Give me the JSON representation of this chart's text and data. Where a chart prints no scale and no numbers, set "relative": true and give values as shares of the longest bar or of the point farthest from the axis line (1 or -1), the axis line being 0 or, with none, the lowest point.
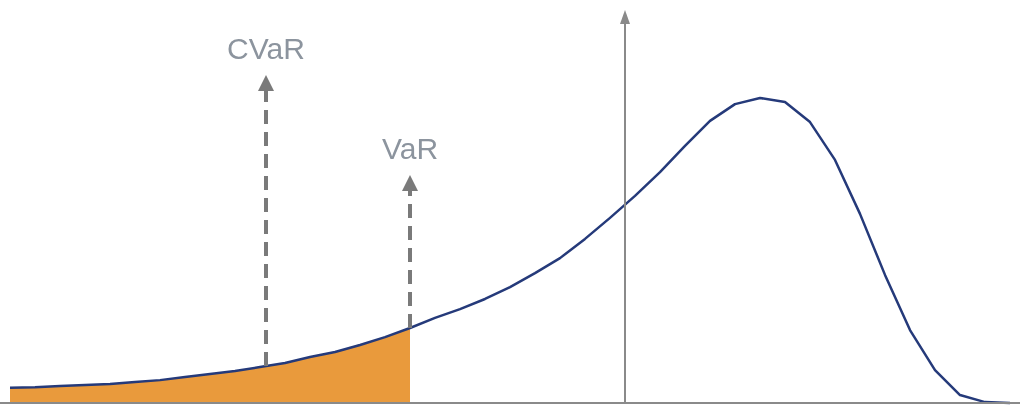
{
  "chart_data": {
    "type": "line",
    "relative": true,
    "categories": [
      null,
      null,
      null,
      null,
      null,
      null,
      null,
      null,
      null,
      null,
      null,
      null,
      null,
      null,
      null,
      null,
      null,
      null,
      null,
      null,
      null,
      null,
      null,
      null,
      null,
      null,
      null,
      null,
      null,
      null,
      null,
      null,
      null,
      null,
      null,
      null,
      null,
      null,
      null,
      null,
      null
    ],
    "series": [
      {
        "type": "area",
        "color": "#e99a3c",
        "values": [
          0.05,
          0.052,
          0.056,
          0.059,
          0.062,
          0.069,
          0.075,
          0.085,
          0.095,
          0.105,
          0.118,
          0.131,
          0.151,
          0.167,
          0.19,
          0.216,
          0.246,
          null,
          null,
          null,
          null,
          null,
          null,
          null,
          null,
          null,
          null,
          null,
          null,
          null,
          null,
          null,
          null,
          null,
          null,
          null,
          null,
          null,
          null,
          null,
          null
        ]
      },
      {
        "type": "line",
        "color": "#253a7a",
        "values": [
          0.05,
          0.052,
          0.056,
          0.059,
          0.062,
          0.069,
          0.075,
          0.085,
          0.095,
          0.105,
          0.118,
          0.131,
          0.151,
          0.167,
          0.19,
          0.216,
          0.246,
          0.279,
          0.308,
          0.341,
          0.38,
          0.426,
          0.475,
          0.538,
          0.607,
          0.679,
          0.757,
          0.843,
          0.925,
          0.98,
          1.0,
          0.987,
          0.921,
          0.797,
          0.62,
          0.42,
          0.239,
          0.108,
          0.026,
          0.003,
          0
        ]
      }
    ],
    "annotations": [
      "CVaR",
      "VaR"
    ]
  }
}
